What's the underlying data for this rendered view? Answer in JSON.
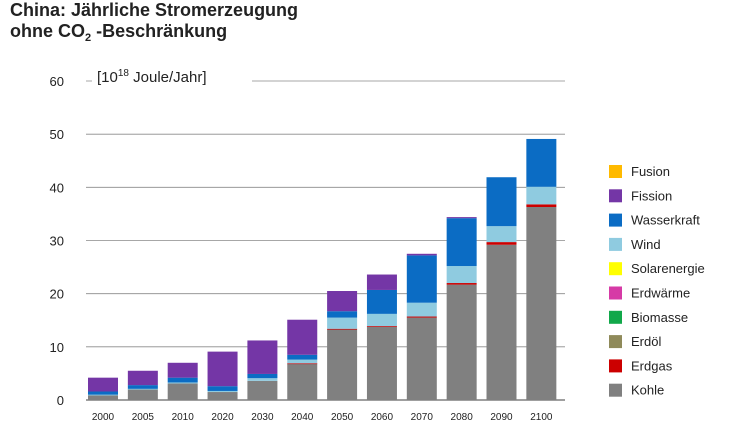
{
  "chart_data": {
    "type": "bar",
    "stacked": true,
    "title_line1": "China: Jährliche Stromerzeugung",
    "title_line2_prefix": "ohne CO",
    "title_line2_sub": "2",
    "title_line2_suffix": " -Beschränkung",
    "unit_prefix": "[10",
    "unit_exp": "18",
    "unit_suffix": " Joule/Jahr]",
    "ylim": [
      0,
      60
    ],
    "yticks": [
      0,
      10,
      20,
      30,
      40,
      50,
      60
    ],
    "categories": [
      "2000",
      "2005",
      "2010",
      "2020",
      "2030",
      "2040",
      "2050",
      "2060",
      "2070",
      "2080",
      "2090",
      "2100"
    ],
    "series": [
      {
        "name": "Kohle",
        "color": "#808080",
        "values": [
          0.9,
          2.0,
          3.1,
          1.5,
          3.6,
          6.8,
          13.3,
          13.8,
          15.5,
          21.7,
          29.2,
          36.3
        ]
      },
      {
        "name": "Erdgas",
        "color": "#cc0000",
        "values": [
          0,
          0,
          0,
          0,
          0,
          0.1,
          0.1,
          0.1,
          0.2,
          0.3,
          0.5,
          0.5
        ]
      },
      {
        "name": "Erdöl",
        "color": "#8f8a5a",
        "values": [
          0,
          0,
          0,
          0,
          0,
          0,
          0,
          0,
          0,
          0,
          0,
          0
        ]
      },
      {
        "name": "Biomasse",
        "color": "#11a84a",
        "values": [
          0,
          0,
          0,
          0,
          0,
          0,
          0,
          0,
          0,
          0,
          0,
          0
        ]
      },
      {
        "name": "Erdwärme",
        "color": "#d63aa6",
        "values": [
          0,
          0,
          0,
          0,
          0,
          0,
          0,
          0,
          0,
          0,
          0,
          0
        ]
      },
      {
        "name": "Solarenergie",
        "color": "#ffff00",
        "values": [
          0,
          0,
          0,
          0,
          0,
          0,
          0,
          0,
          0,
          0,
          0,
          0
        ]
      },
      {
        "name": "Wind",
        "color": "#8fcbe0",
        "values": [
          0.1,
          0.1,
          0.2,
          0.2,
          0.5,
          0.7,
          2.1,
          2.3,
          2.6,
          3.2,
          3.0,
          3.3
        ]
      },
      {
        "name": "Wasserkraft",
        "color": "#0b6cc4",
        "values": [
          0.6,
          0.7,
          0.9,
          0.9,
          0.8,
          0.9,
          1.2,
          4.5,
          8.9,
          9.0,
          9.2,
          9.0
        ]
      },
      {
        "name": "Fission",
        "color": "#7436a6",
        "values": [
          2.6,
          2.7,
          2.8,
          6.5,
          6.3,
          6.6,
          3.8,
          2.9,
          0.3,
          0.2,
          0,
          0
        ]
      },
      {
        "name": "Fusion",
        "color": "#ffba00",
        "values": [
          0,
          0,
          0,
          0,
          0,
          0,
          0,
          0,
          0,
          0,
          0,
          0
        ]
      }
    ],
    "legend_order": [
      "Fusion",
      "Fission",
      "Wasserkraft",
      "Wind",
      "Solarenergie",
      "Erdwärme",
      "Biomasse",
      "Erdöl",
      "Erdgas",
      "Kohle"
    ],
    "grid": true,
    "legend_position": "right"
  }
}
